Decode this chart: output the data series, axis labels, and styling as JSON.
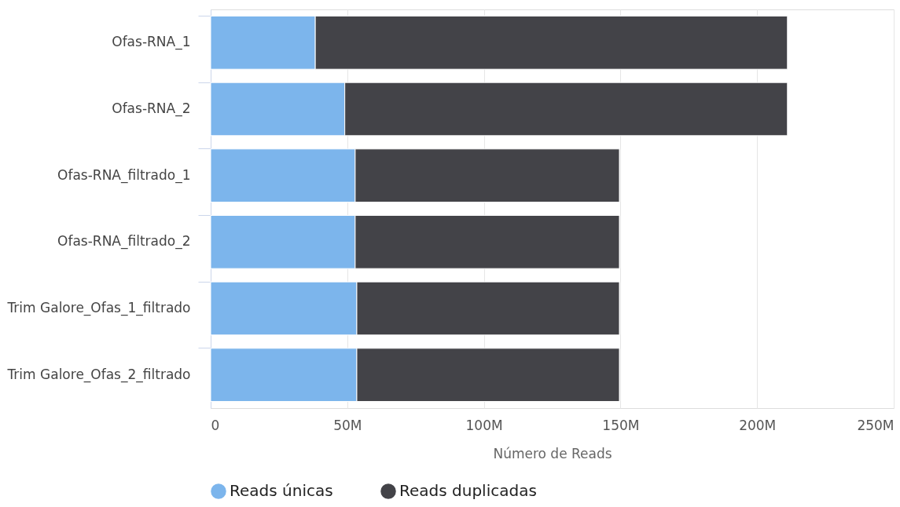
{
  "chart_data": {
    "type": "bar",
    "orientation": "horizontal",
    "stacked": true,
    "categories": [
      "Ofas-RNA_1",
      "Ofas-RNA_2",
      "Ofas-RNA_filtrado_1",
      "Ofas-RNA_filtrado_2",
      "Trim Galore_Ofas_1_filtrado",
      "Trim Galore_Ofas_2_filtrado"
    ],
    "series": [
      {
        "name": "Reads únicas",
        "color": "#7cb5ec",
        "values": [
          38.3,
          49.1,
          52.9,
          52.9,
          53.5,
          53.5
        ]
      },
      {
        "name": "Reads duplicadas",
        "color": "#434348",
        "values": [
          172.8,
          162.0,
          96.7,
          96.7,
          96.1,
          96.1
        ]
      }
    ],
    "xlabel": "Número de Reads",
    "xlim": [
      0,
      250
    ],
    "xticks": [
      0,
      {
        "value": 50,
        "label": "50M"
      },
      {
        "value": 100,
        "label": "100M"
      },
      {
        "value": 150,
        "label": "150M"
      },
      {
        "value": 200,
        "label": "200M"
      },
      {
        "value": 250,
        "label": "250M"
      }
    ],
    "grid": "x",
    "legend": "bottom"
  }
}
